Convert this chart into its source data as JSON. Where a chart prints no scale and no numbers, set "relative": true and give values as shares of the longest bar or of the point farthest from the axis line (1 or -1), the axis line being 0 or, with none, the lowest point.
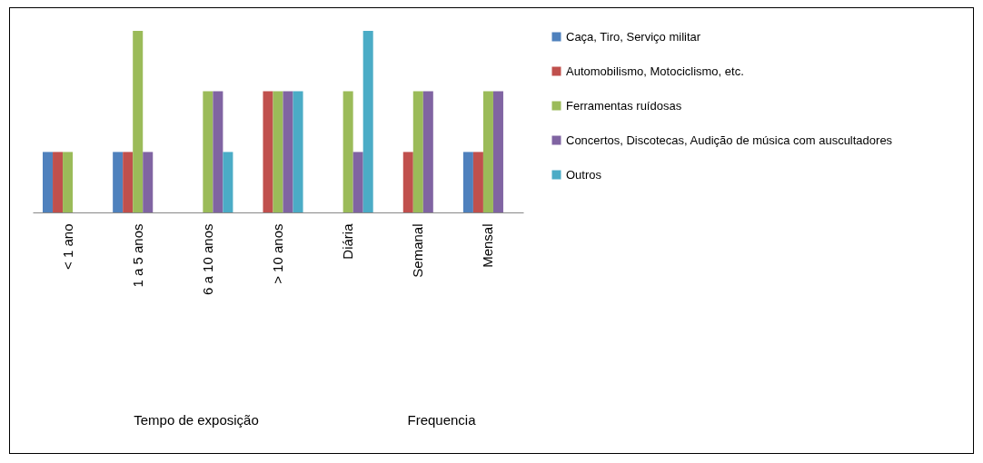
{
  "chart_data": {
    "type": "bar",
    "relative": true,
    "grid": false,
    "legend": "right",
    "categories": [
      "< 1 ano",
      "1 a 5 anos",
      "6 a 10 anos",
      "> 10 anos",
      "Diária",
      "Semanal",
      "Mensal"
    ],
    "series": [
      {
        "name": "Caça, Tiro, Serviço militar",
        "color": "#4f81bd",
        "values": [
          0.333,
          0.333,
          null,
          null,
          null,
          null,
          0.333
        ]
      },
      {
        "name": "Automobilismo, Motociclismo, etc.",
        "color": "#c0504d",
        "values": [
          0.333,
          0.333,
          null,
          0.667,
          null,
          0.333,
          0.333
        ]
      },
      {
        "name": "Ferramentas ruídosas",
        "color": "#9bbb59",
        "values": [
          0.333,
          1,
          0.667,
          0.667,
          0.667,
          0.667,
          0.667
        ]
      },
      {
        "name": "Concertos, Discotecas, Audição de música com auscultadores",
        "color": "#8064a2",
        "values": [
          null,
          0.333,
          0.667,
          0.667,
          0.333,
          0.667,
          0.667
        ]
      },
      {
        "name": "Outros",
        "color": "#4bacc6",
        "values": [
          null,
          null,
          0.333,
          0.667,
          1,
          null,
          null
        ]
      }
    ],
    "annotations": [
      "Tempo de exposição",
      "Frequencia"
    ]
  }
}
